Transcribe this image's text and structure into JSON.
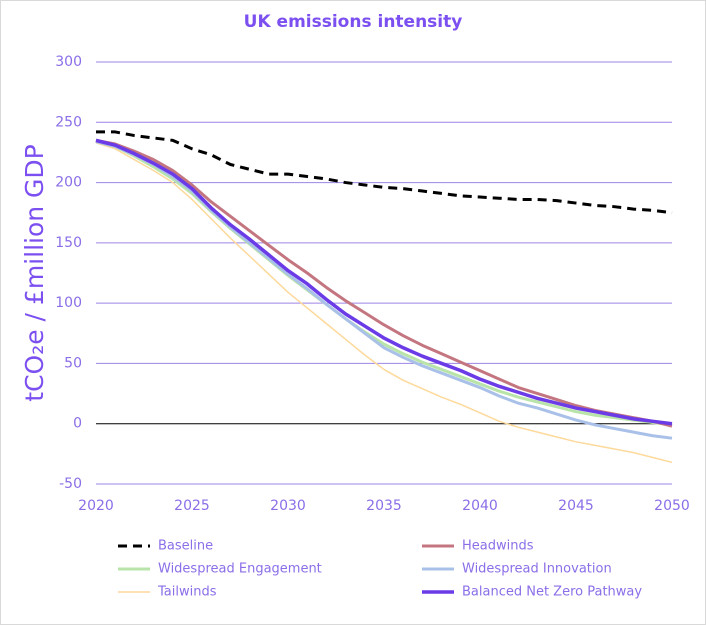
{
  "chart_data": {
    "type": "line",
    "title": "UK emissions intensity",
    "y_label": "tCO₂e / £million GDP",
    "x": [
      2020,
      2021,
      2022,
      2023,
      2024,
      2025,
      2026,
      2027,
      2028,
      2029,
      2030,
      2031,
      2032,
      2033,
      2034,
      2035,
      2036,
      2037,
      2038,
      2039,
      2040,
      2041,
      2042,
      2043,
      2044,
      2045,
      2046,
      2047,
      2048,
      2049,
      2050
    ],
    "xlim": [
      2020,
      2050
    ],
    "xticks": [
      2020,
      2025,
      2030,
      2035,
      2040,
      2045,
      2050
    ],
    "ylim": [
      -50,
      300
    ],
    "yticks": [
      -50,
      0,
      50,
      100,
      150,
      200,
      250,
      300
    ],
    "grid": true,
    "series": [
      {
        "name": "Baseline",
        "color": "#000000",
        "style": "dashed",
        "values": [
          242,
          242,
          239,
          237,
          235,
          228,
          223,
          215,
          211,
          207,
          207,
          205,
          203,
          200,
          198,
          196,
          195,
          193,
          191,
          189,
          188,
          187,
          186,
          186,
          185,
          183,
          181,
          180,
          178,
          177,
          175
        ]
      },
      {
        "name": "Headwinds",
        "color": "#c47680",
        "style": "solid",
        "values": [
          235,
          232,
          226,
          219,
          210,
          198,
          184,
          172,
          160,
          148,
          136,
          125,
          113,
          102,
          92,
          82,
          73,
          65,
          58,
          51,
          44,
          37,
          30,
          25,
          20,
          15,
          11,
          8,
          5,
          2,
          -2
        ]
      },
      {
        "name": "Widespread Engagement",
        "color": "#b9e4a9",
        "style": "solid",
        "values": [
          234,
          230,
          222,
          213,
          203,
          191,
          176,
          162,
          149,
          136,
          123,
          111,
          99,
          87,
          76,
          66,
          58,
          51,
          45,
          39,
          33,
          27,
          22,
          18,
          14,
          10,
          7,
          5,
          3,
          1,
          -1
        ]
      },
      {
        "name": "Widespread Innovation",
        "color": "#a9c0e8",
        "style": "solid",
        "values": [
          234,
          230,
          223,
          215,
          205,
          193,
          177,
          163,
          150,
          137,
          124,
          112,
          99,
          87,
          75,
          63,
          55,
          48,
          42,
          36,
          30,
          23,
          17,
          13,
          8,
          3,
          -1,
          -4,
          -7,
          -10,
          -12
        ]
      },
      {
        "name": "Tailwinds",
        "color": "#fdd99b",
        "style": "thin",
        "values": [
          233,
          228,
          219,
          210,
          200,
          186,
          170,
          154,
          139,
          124,
          109,
          96,
          83,
          70,
          57,
          45,
          36,
          29,
          22,
          16,
          9,
          2,
          -3,
          -7,
          -11,
          -15,
          -18,
          -21,
          -24,
          -28,
          -32
        ]
      },
      {
        "name": "Balanced Net Zero Pathway",
        "color": "#6a3be6",
        "style": "thick",
        "values": [
          235,
          231,
          224,
          216,
          207,
          195,
          179,
          165,
          153,
          140,
          127,
          116,
          103,
          91,
          81,
          71,
          63,
          56,
          50,
          44,
          37,
          31,
          26,
          21,
          17,
          13,
          10,
          7,
          4,
          2,
          0
        ]
      }
    ]
  }
}
